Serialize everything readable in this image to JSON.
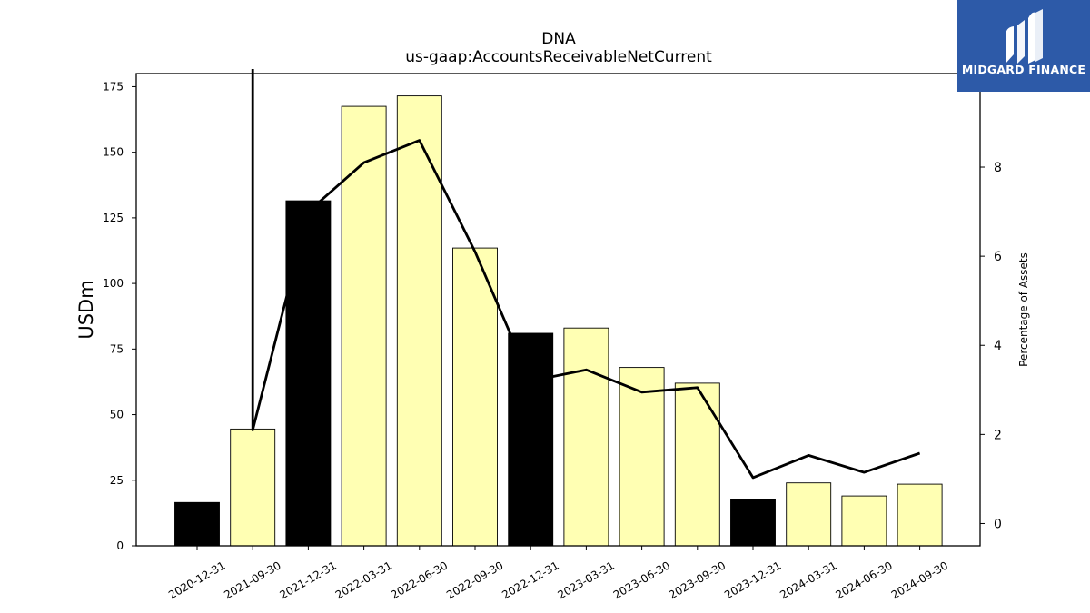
{
  "chart_data": {
    "type": "bar",
    "title": "DNA",
    "subtitle": "us-gaap:AccountsReceivableNetCurrent",
    "ylabel": "USDm",
    "ylabel_right": "Percentage of Assets",
    "categories": [
      "2020-12-31",
      "2021-09-30",
      "2021-12-31",
      "2022-03-31",
      "2022-06-30",
      "2022-09-30",
      "2022-12-31",
      "2023-03-31",
      "2023-06-30",
      "2023-09-30",
      "2023-12-31",
      "2024-03-31",
      "2024-06-30",
      "2024-09-30"
    ],
    "values": [
      16.5,
      44.5,
      131.5,
      167.5,
      171.5,
      113.5,
      81,
      83,
      68,
      62,
      17.5,
      24,
      19,
      23.5
    ],
    "annual_flags": [
      true,
      false,
      true,
      false,
      false,
      false,
      true,
      false,
      false,
      false,
      true,
      false,
      false,
      false
    ],
    "bar_colors": {
      "annual": "#000000",
      "quarterly": "#ffffb3"
    },
    "ylim": [
      0,
      180
    ],
    "yticks": [
      0,
      25,
      50,
      75,
      100,
      125,
      150,
      175
    ],
    "line_series": {
      "name": "",
      "values": [
        null,
        2.1,
        7.0,
        8.1,
        8.6,
        6.1,
        3.2,
        3.45,
        2.95,
        3.05,
        1.03,
        1.53,
        1.15,
        1.58
      ],
      "off_chart_start": 11.0,
      "color": "#000000"
    },
    "ylim_right": [
      -0.5,
      10.1
    ],
    "yticks_right": [
      0,
      2,
      4,
      6,
      8
    ],
    "grid": false
  },
  "logo": {
    "text": "MIDGARD FINANCE",
    "bg_color": "#2d5aa8"
  }
}
